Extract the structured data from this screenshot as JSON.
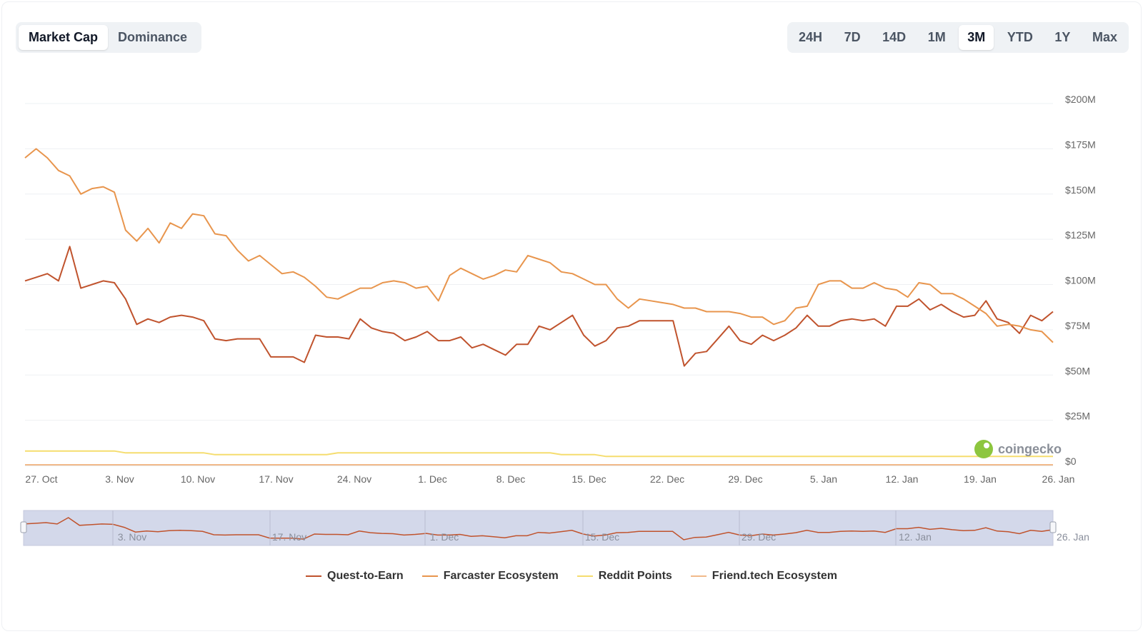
{
  "tabs": {
    "metric": [
      {
        "label": "Market Cap",
        "active": true
      },
      {
        "label": "Dominance",
        "active": false
      }
    ],
    "ranges": [
      {
        "label": "24H",
        "active": false
      },
      {
        "label": "7D",
        "active": false
      },
      {
        "label": "14D",
        "active": false
      },
      {
        "label": "1M",
        "active": false
      },
      {
        "label": "3M",
        "active": true
      },
      {
        "label": "YTD",
        "active": false
      },
      {
        "label": "1Y",
        "active": false
      },
      {
        "label": "Max",
        "active": false
      }
    ]
  },
  "watermark": "coingecko",
  "colors": {
    "quest": "#c0532d",
    "farcaster": "#e8954d",
    "reddit": "#f5dd6f",
    "friendtech": "#f1b98a",
    "grid": "#eef0f3",
    "navigator_fill": "#d3d8ea"
  },
  "chart_data": {
    "type": "line",
    "x_start": "2023-10-27",
    "x_end": "2024-01-26",
    "y_unit": "USD",
    "ylim": [
      0,
      200000000
    ],
    "y_ticks": [
      "$0",
      "$25M",
      "$50M",
      "$75M",
      "$100M",
      "$125M",
      "$150M",
      "$175M",
      "$200M"
    ],
    "x_ticks": [
      "27. Oct",
      "3. Nov",
      "10. Nov",
      "17. Nov",
      "24. Nov",
      "1. Dec",
      "8. Dec",
      "15. Dec",
      "22. Dec",
      "29. Dec",
      "5. Jan",
      "12. Jan",
      "19. Jan",
      "26. Jan"
    ],
    "navigator_ticks": [
      "3. Nov",
      "17. Nov",
      "1. Dec",
      "15. Dec",
      "29. Dec",
      "12. Jan",
      "26. Jan"
    ],
    "legend_position": "bottom",
    "series": [
      {
        "name": "Quest-to-Earn",
        "color_key": "quest",
        "values": [
          102,
          104,
          106,
          102,
          121,
          98,
          100,
          102,
          101,
          92,
          78,
          81,
          79,
          82,
          83,
          82,
          80,
          70,
          69,
          70,
          70,
          70,
          60,
          60,
          60,
          57,
          72,
          71,
          71,
          70,
          81,
          76,
          74,
          73,
          69,
          71,
          74,
          69,
          69,
          71,
          65,
          67,
          64,
          61,
          67,
          67,
          77,
          75,
          79,
          83,
          72,
          66,
          69,
          76,
          77,
          80,
          80,
          80,
          80,
          55,
          62,
          63,
          70,
          77,
          69,
          67,
          72,
          69,
          72,
          76,
          83,
          77,
          77,
          80,
          81,
          80,
          81,
          77,
          88,
          88,
          92,
          86,
          89,
          85,
          82,
          83,
          91,
          81,
          79,
          73,
          83,
          80,
          85
        ]
      },
      {
        "name": "Farcaster Ecosystem",
        "color_key": "farcaster",
        "values": [
          170,
          175,
          170,
          163,
          160,
          150,
          153,
          154,
          151,
          130,
          124,
          131,
          123,
          134,
          131,
          139,
          138,
          128,
          127,
          119,
          113,
          116,
          111,
          106,
          107,
          104,
          99,
          93,
          92,
          95,
          98,
          98,
          101,
          102,
          101,
          98,
          99,
          91,
          105,
          109,
          106,
          103,
          105,
          108,
          107,
          116,
          114,
          112,
          107,
          106,
          103,
          100,
          100,
          92,
          87,
          92,
          91,
          90,
          89,
          87,
          87,
          85,
          85,
          85,
          84,
          82,
          82,
          78,
          80,
          87,
          88,
          100,
          102,
          102,
          98,
          98,
          101,
          98,
          97,
          93,
          101,
          100,
          95,
          95,
          92,
          88,
          84,
          77,
          78,
          77,
          75,
          74,
          68
        ]
      },
      {
        "name": "Reddit Points",
        "color_key": "reddit",
        "values": [
          8,
          8,
          8,
          8,
          8,
          8,
          8,
          8,
          8,
          7,
          7,
          7,
          7,
          7,
          7,
          7,
          7,
          6,
          6,
          6,
          6,
          6,
          6,
          6,
          6,
          6,
          6,
          6,
          7,
          7,
          7,
          7,
          7,
          7,
          7,
          7,
          7,
          7,
          7,
          7,
          7,
          7,
          7,
          7,
          7,
          7,
          7,
          7,
          6,
          6,
          6,
          6,
          5,
          5,
          5,
          5,
          5,
          5,
          5,
          5,
          5,
          5,
          5,
          5,
          5,
          5,
          5,
          5,
          5,
          5,
          5,
          5,
          5,
          5,
          5,
          5,
          5,
          5,
          5,
          5,
          5,
          5,
          5,
          5,
          5,
          5,
          5,
          5,
          5,
          5,
          5,
          5,
          5
        ]
      },
      {
        "name": "Friend.tech Ecosystem",
        "color_key": "friendtech",
        "values": [
          0.4,
          0.4,
          0.4,
          0.4,
          0.4,
          0.4,
          0.4,
          0.4,
          0.4,
          0.4,
          0.4,
          0.4,
          0.4,
          0.4,
          0.4,
          0.4,
          0.4,
          0.4,
          0.4,
          0.4,
          0.4,
          0.4,
          0.4,
          0.4,
          0.4,
          0.4,
          0.4,
          0.4,
          0.4,
          0.4,
          0.4,
          0.4,
          0.4,
          0.4,
          0.4,
          0.4,
          0.4,
          0.4,
          0.4,
          0.4,
          0.4,
          0.4,
          0.4,
          0.4,
          0.4,
          0.4,
          0.4,
          0.4,
          0.4,
          0.4,
          0.4,
          0.4,
          0.4,
          0.4,
          0.4,
          0.4,
          0.4,
          0.4,
          0.4,
          0.4,
          0.4,
          0.4,
          0.4,
          0.4,
          0.4,
          0.4,
          0.4,
          0.4,
          0.4,
          0.4,
          0.4,
          0.4,
          0.4,
          0.4,
          0.4,
          0.4,
          0.4,
          0.4,
          0.4,
          0.4,
          0.4,
          0.4,
          0.4,
          0.4,
          0.4,
          0.4,
          0.4,
          0.4,
          0.4,
          0.4,
          0.4,
          0.4,
          0.4
        ]
      }
    ],
    "series_value_unit": "USD millions"
  }
}
